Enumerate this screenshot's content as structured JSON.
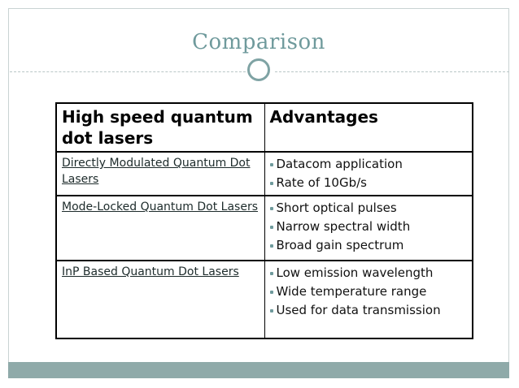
{
  "slide": {
    "title": "Comparison"
  },
  "table": {
    "headers": [
      "High speed quantum dot lasers",
      "Advantages"
    ],
    "rows": [
      {
        "name": "Directly Modulated Quantum Dot Lasers",
        "advantages": [
          "Datacom application",
          "Rate of 10Gb/s"
        ]
      },
      {
        "name": "Mode-Locked Quantum Dot Lasers",
        "advantages": [
          "Short optical pulses",
          "Narrow spectral width",
          "Broad gain spectrum"
        ]
      },
      {
        "name": "InP Based Quantum Dot Lasers",
        "advantages": [
          "Low emission wavelength",
          "Wide temperature range",
          "Used for data transmission"
        ]
      }
    ]
  },
  "colors": {
    "title": "#6f9a9c",
    "accent_bar": "#8faaa9",
    "ring": "#7fa3a4"
  }
}
